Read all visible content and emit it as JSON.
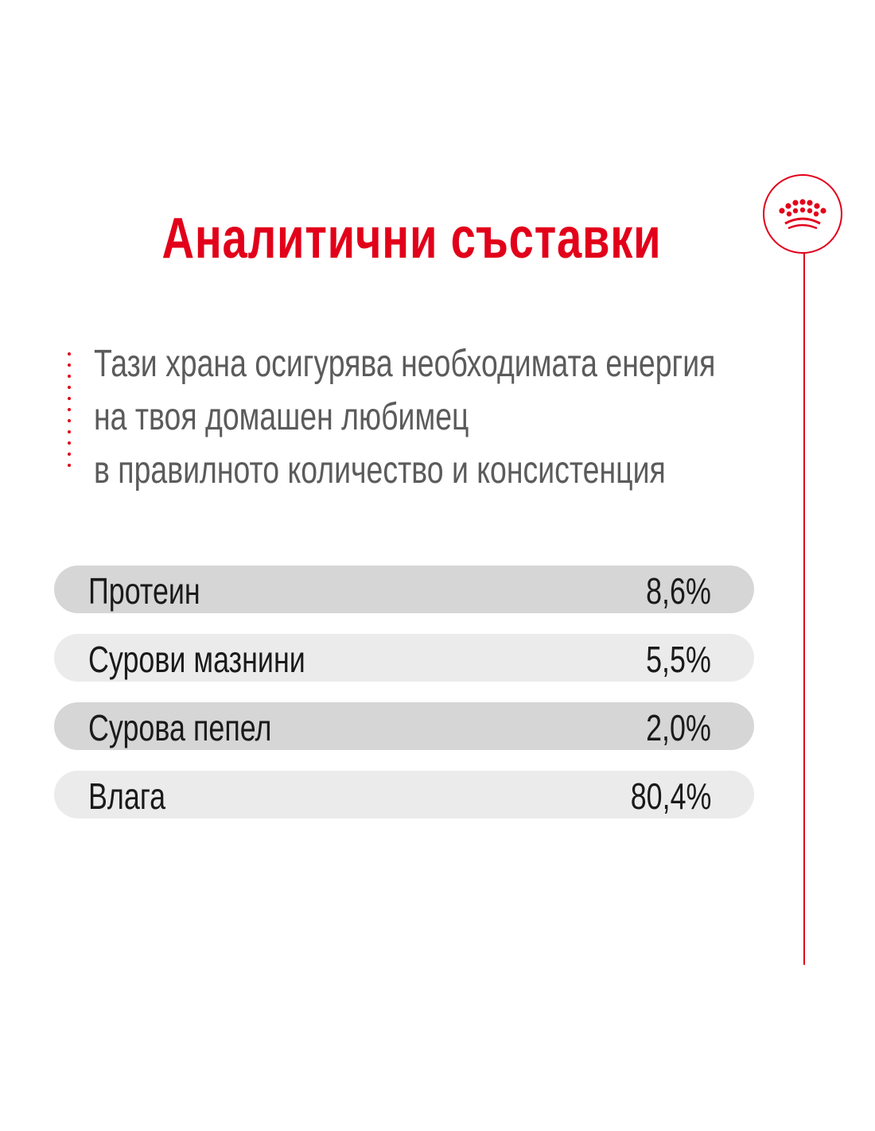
{
  "title": "Аналитични съставки",
  "description": {
    "lines": [
      "Тази храна осигурява необходимата енергия",
      "на твоя домашен любимец",
      "в правилното количество и консистенция"
    ]
  },
  "rows": [
    {
      "label": "Протеин",
      "value": "8,6%"
    },
    {
      "label": "Сурови мазнини",
      "value": "5,5%"
    },
    {
      "label": "Сурова пепел",
      "value": "2,0%"
    },
    {
      "label": "Влага",
      "value": "80,4%"
    }
  ],
  "colors": {
    "accent": "#e2001a",
    "text_gray": "#5b5b5b",
    "row_dark": "#d6d6d6",
    "row_light": "#ebebeb"
  },
  "icons": {
    "logo": "royal-crown-icon"
  }
}
